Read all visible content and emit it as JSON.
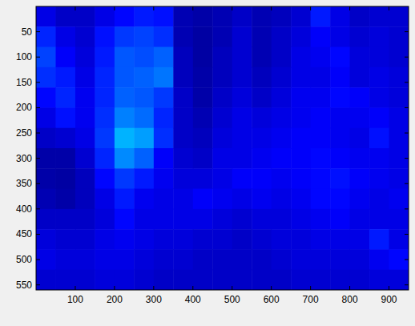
{
  "chart_data": {
    "type": "heatmap",
    "xlim": [
      0,
      950
    ],
    "ylim": [
      0,
      560
    ],
    "xticks": [
      100,
      200,
      300,
      400,
      500,
      600,
      700,
      800,
      900
    ],
    "yticks": [
      50,
      100,
      150,
      200,
      250,
      300,
      350,
      400,
      450,
      500,
      550
    ],
    "zlim": [
      0,
      2
    ],
    "cells": [
      [
        0.2,
        0.14,
        0.14,
        0.2,
        0.26,
        0.3,
        0.28,
        0.1,
        0.08,
        0.1,
        0.14,
        0.1,
        0.12,
        0.16,
        0.3,
        0.2,
        0.14,
        0.16,
        0.16
      ],
      [
        0.32,
        0.2,
        0.16,
        0.28,
        0.36,
        0.38,
        0.34,
        0.1,
        0.07,
        0.1,
        0.16,
        0.1,
        0.14,
        0.18,
        0.24,
        0.2,
        0.16,
        0.18,
        0.16
      ],
      [
        0.38,
        0.24,
        0.18,
        0.3,
        0.42,
        0.4,
        0.44,
        0.12,
        0.07,
        0.12,
        0.16,
        0.1,
        0.14,
        0.2,
        0.22,
        0.26,
        0.18,
        0.18,
        0.16
      ],
      [
        0.34,
        0.3,
        0.2,
        0.32,
        0.42,
        0.44,
        0.48,
        0.12,
        0.08,
        0.12,
        0.16,
        0.12,
        0.16,
        0.2,
        0.2,
        0.24,
        0.18,
        0.2,
        0.18
      ],
      [
        0.26,
        0.32,
        0.22,
        0.32,
        0.44,
        0.42,
        0.36,
        0.14,
        0.08,
        0.14,
        0.18,
        0.14,
        0.18,
        0.22,
        0.22,
        0.26,
        0.24,
        0.2,
        0.18
      ],
      [
        0.2,
        0.28,
        0.22,
        0.34,
        0.5,
        0.46,
        0.32,
        0.14,
        0.1,
        0.16,
        0.2,
        0.18,
        0.2,
        0.22,
        0.24,
        0.22,
        0.22,
        0.24,
        0.2
      ],
      [
        0.14,
        0.16,
        0.2,
        0.36,
        0.6,
        0.56,
        0.34,
        0.14,
        0.12,
        0.18,
        0.2,
        0.2,
        0.22,
        0.24,
        0.24,
        0.22,
        0.2,
        0.28,
        0.2
      ],
      [
        0.08,
        0.08,
        0.16,
        0.32,
        0.52,
        0.44,
        0.24,
        0.16,
        0.14,
        0.2,
        0.2,
        0.22,
        0.24,
        0.24,
        0.26,
        0.24,
        0.22,
        0.22,
        0.2
      ],
      [
        0.08,
        0.07,
        0.12,
        0.26,
        0.36,
        0.3,
        0.22,
        0.18,
        0.18,
        0.2,
        0.24,
        0.24,
        0.22,
        0.24,
        0.26,
        0.28,
        0.24,
        0.22,
        0.2
      ],
      [
        0.1,
        0.08,
        0.12,
        0.2,
        0.3,
        0.22,
        0.2,
        0.2,
        0.24,
        0.22,
        0.2,
        0.22,
        0.2,
        0.22,
        0.26,
        0.26,
        0.22,
        0.2,
        0.22
      ],
      [
        0.14,
        0.14,
        0.14,
        0.18,
        0.26,
        0.2,
        0.2,
        0.2,
        0.2,
        0.18,
        0.16,
        0.18,
        0.18,
        0.2,
        0.22,
        0.24,
        0.2,
        0.2,
        0.2
      ],
      [
        0.18,
        0.16,
        0.16,
        0.2,
        0.22,
        0.2,
        0.18,
        0.18,
        0.16,
        0.16,
        0.14,
        0.16,
        0.18,
        0.18,
        0.2,
        0.2,
        0.2,
        0.3,
        0.2
      ],
      [
        0.2,
        0.18,
        0.18,
        0.2,
        0.2,
        0.18,
        0.16,
        0.16,
        0.14,
        0.14,
        0.14,
        0.14,
        0.16,
        0.18,
        0.18,
        0.18,
        0.18,
        0.22,
        0.26
      ],
      [
        0.16,
        0.16,
        0.16,
        0.18,
        0.18,
        0.16,
        0.14,
        0.14,
        0.14,
        0.14,
        0.14,
        0.14,
        0.14,
        0.16,
        0.16,
        0.16,
        0.16,
        0.18,
        0.18
      ]
    ]
  }
}
